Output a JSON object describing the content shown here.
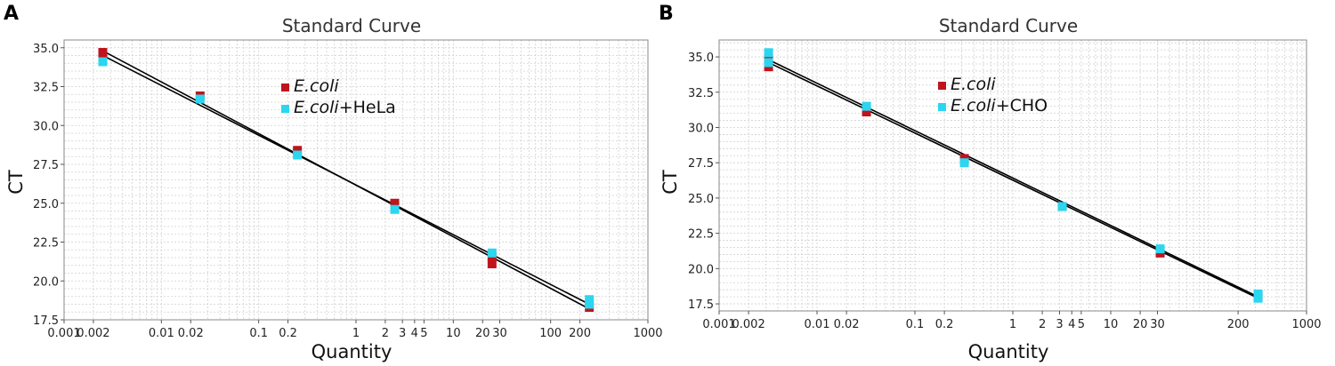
{
  "chart_data": [
    {
      "panel": "A",
      "type": "scatter",
      "title": "Standard Curve",
      "xlabel": "Quantity",
      "ylabel": "CT",
      "xscale": "log",
      "xlim": [
        0.001,
        1000
      ],
      "ylim": [
        17.5,
        35.5
      ],
      "x_ticks": [
        "0.001",
        "0.002",
        "0.01",
        "0.02",
        "0.1",
        "0.2",
        "1",
        "2",
        "3",
        "4",
        "5",
        "10",
        "20",
        "30",
        "100",
        "200",
        "1000"
      ],
      "y_ticks": [
        "35.0",
        "32.5",
        "30.0",
        "27.5",
        "25.0",
        "22.5",
        "20.0",
        "17.5"
      ],
      "grid": true,
      "legend_position": "upper-center",
      "series": [
        {
          "legend_italic": "E.coli",
          "legend_suffix": "",
          "color": "#c0141c",
          "points": [
            {
              "x": 0.0025,
              "y": 34.7
            },
            {
              "x": 0.0025,
              "y": 34.4
            },
            {
              "x": 0.025,
              "y": 31.9
            },
            {
              "x": 0.25,
              "y": 28.4
            },
            {
              "x": 2.5,
              "y": 25.0
            },
            {
              "x": 25,
              "y": 21.6
            },
            {
              "x": 25,
              "y": 21.1
            },
            {
              "x": 250,
              "y": 18.3
            }
          ],
          "fit": {
            "x": [
              0.0025,
              250
            ],
            "y": [
              34.8,
              18.2
            ]
          }
        },
        {
          "legend_italic": "E.coli",
          "legend_suffix": "+HeLa",
          "color": "#2ad6f0",
          "points": [
            {
              "x": 0.0025,
              "y": 34.1
            },
            {
              "x": 0.025,
              "y": 31.7
            },
            {
              "x": 0.25,
              "y": 28.1
            },
            {
              "x": 2.5,
              "y": 24.6
            },
            {
              "x": 25,
              "y": 21.8
            },
            {
              "x": 250,
              "y": 18.8
            },
            {
              "x": 250,
              "y": 18.5
            }
          ],
          "fit": {
            "x": [
              0.0025,
              250
            ],
            "y": [
              34.5,
              18.5
            ]
          }
        }
      ]
    },
    {
      "panel": "B",
      "type": "scatter",
      "title": "Standard Curve",
      "xlabel": "Quantity",
      "ylabel": "CT",
      "xscale": "log",
      "xlim": [
        0.001,
        1000
      ],
      "ylim": [
        17.0,
        36.2
      ],
      "x_ticks": [
        "0.001",
        "0.002",
        "0.01",
        "0.02",
        "0.1",
        "0.2",
        "1",
        "2",
        "3",
        "4",
        "5",
        "10",
        "20",
        "30",
        "200",
        "1000"
      ],
      "y_ticks": [
        "35.0",
        "32.5",
        "30.0",
        "27.5",
        "25.0",
        "22.5",
        "20.0",
        "17.5"
      ],
      "grid": true,
      "legend_position": "upper-center",
      "series": [
        {
          "legend_italic": "E.coli",
          "legend_suffix": "",
          "color": "#c0141c",
          "points": [
            {
              "x": 0.0032,
              "y": 34.9
            },
            {
              "x": 0.0032,
              "y": 34.3
            },
            {
              "x": 0.032,
              "y": 31.1
            },
            {
              "x": 0.32,
              "y": 27.8
            },
            {
              "x": 3.2,
              "y": 24.4
            },
            {
              "x": 32,
              "y": 21.1
            },
            {
              "x": 320,
              "y": 18.0
            }
          ],
          "fit": {
            "x": [
              0.0032,
              320
            ],
            "y": [
              34.6,
              17.9
            ]
          }
        },
        {
          "legend_italic": "E.coli",
          "legend_suffix": "+CHO",
          "color": "#2ad6f0",
          "points": [
            {
              "x": 0.0032,
              "y": 35.3
            },
            {
              "x": 0.0032,
              "y": 34.6
            },
            {
              "x": 0.032,
              "y": 31.5
            },
            {
              "x": 0.32,
              "y": 27.5
            },
            {
              "x": 3.2,
              "y": 24.4
            },
            {
              "x": 32,
              "y": 21.4
            },
            {
              "x": 320,
              "y": 18.2
            },
            {
              "x": 320,
              "y": 17.9
            }
          ],
          "fit": {
            "x": [
              0.0032,
              320
            ],
            "y": [
              34.8,
              18.0
            ]
          }
        }
      ]
    }
  ]
}
